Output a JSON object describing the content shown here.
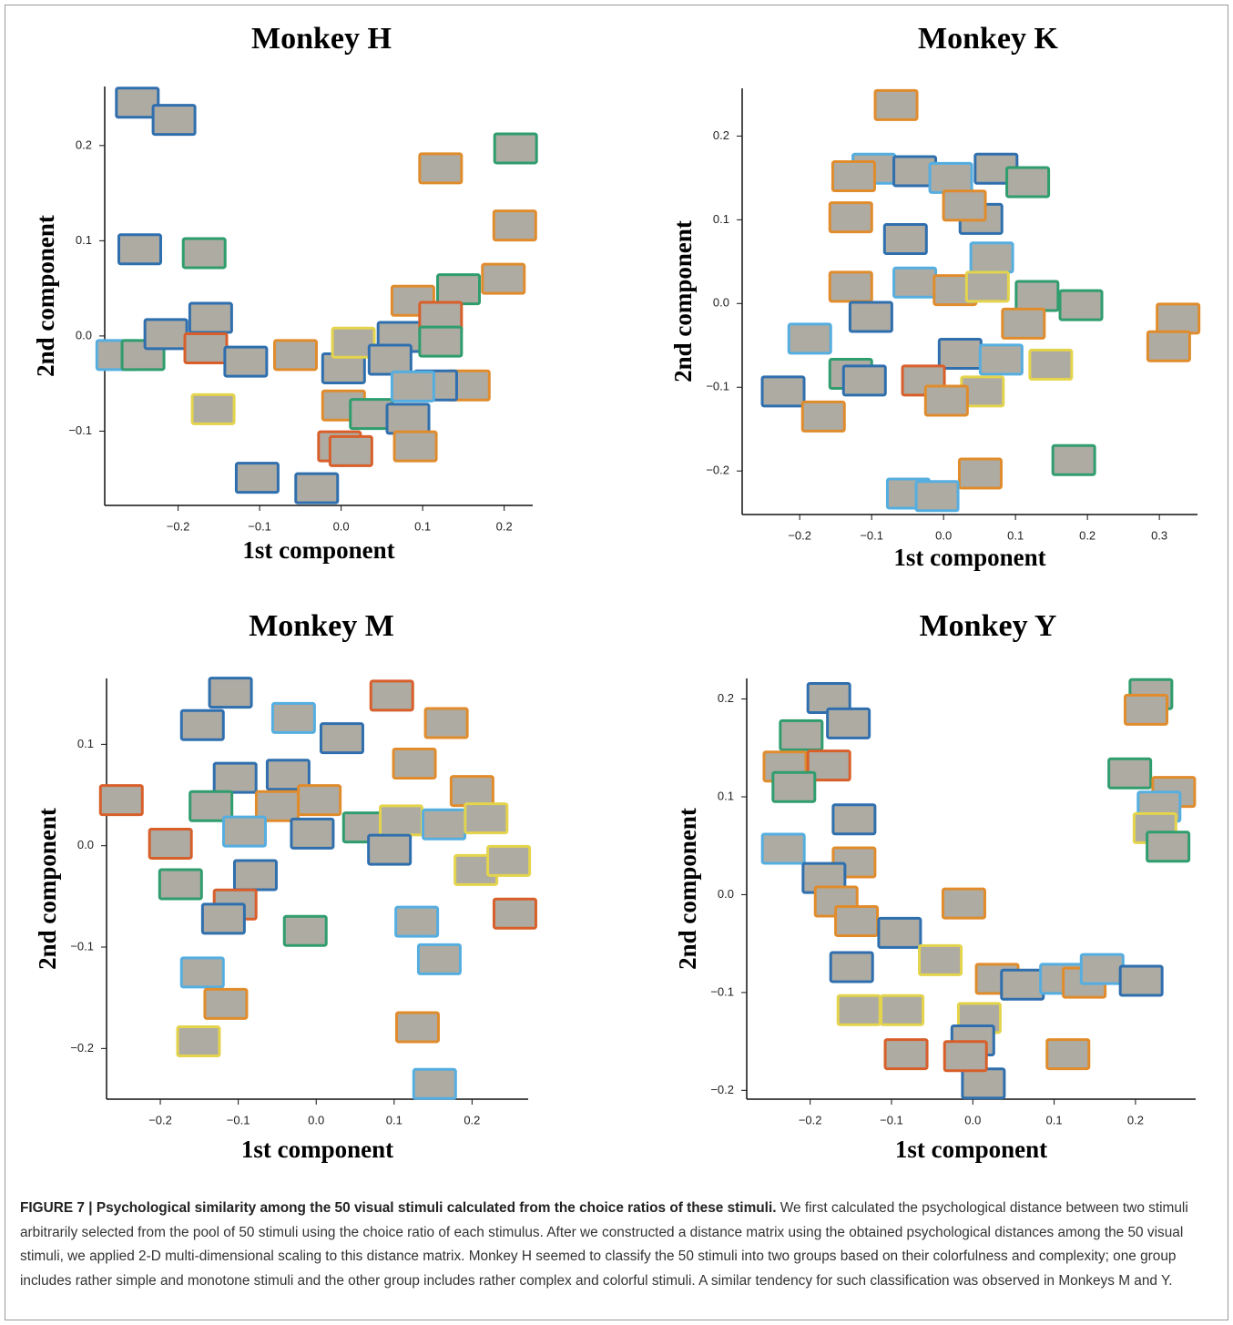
{
  "chart_data": [
    {
      "type": "scatter",
      "title": "Monkey H",
      "xlabel": "1st component",
      "ylabel": "2nd component",
      "xlim": [
        -0.29,
        0.235
      ],
      "ylim": [
        -0.178,
        0.262
      ],
      "xticks": [
        {
          "value": -0.2,
          "label": "−0.2"
        },
        {
          "value": -0.1,
          "label": "−0.1"
        },
        {
          "value": 0,
          "label": "0.0"
        },
        0.1,
        0.2
      ],
      "yticks": [
        {
          "value": -0.1,
          "label": "−0.1"
        },
        {
          "value": 0,
          "label": "0.0"
        },
        0.1,
        0.2
      ],
      "x": [
        -0.25,
        -0.205,
        -0.247,
        -0.168,
        -0.274,
        -0.243,
        -0.215,
        -0.16,
        -0.166,
        -0.117,
        -0.157,
        -0.103,
        -0.03,
        -0.056,
        0.003,
        0.015,
        0.003,
        -0.002,
        0.037,
        0.071,
        0.06,
        0.088,
        0.144,
        0.199,
        0.122,
        0.122,
        0.156,
        0.116,
        0.082,
        0.091,
        0.122,
        0.214,
        0.213,
        0.012,
        0.088
      ],
      "values": [
        0.245,
        0.227,
        0.091,
        0.087,
        -0.02,
        -0.02,
        0.002,
        0.019,
        -0.013,
        -0.027,
        -0.077,
        -0.149,
        -0.16,
        -0.02,
        -0.034,
        -0.007,
        -0.073,
        -0.116,
        -0.082,
        -0.001,
        -0.025,
        0.037,
        0.049,
        0.06,
        0.02,
        -0.006,
        -0.052,
        -0.052,
        -0.087,
        -0.116,
        0.176,
        0.197,
        0.116,
        -0.121,
        -0.053
      ],
      "colors": [
        "#2f6fae",
        "#2f6fae",
        "#2f6fae",
        "#2f9d6e",
        "#55aee0",
        "#2f9d6e",
        "#2f6fae",
        "#2f6fae",
        "#d85f2a",
        "#2f6fae",
        "#e4d44c",
        "#2f6fae",
        "#2f6fae",
        "#e08c2c",
        "#2f6fae",
        "#e4d44c",
        "#e08c2c",
        "#d85f2a",
        "#2f9d6e",
        "#2f6fae",
        "#2f6fae",
        "#e08c2c",
        "#2f9d6e",
        "#e08c2c",
        "#d85f2a",
        "#2f9d6e",
        "#e08c2c",
        "#2f6fae",
        "#2f6fae",
        "#e08c2c",
        "#e08c2c",
        "#2f9d6e",
        "#e08c2c",
        "#d85f2a",
        "#55aee0"
      ]
    },
    {
      "type": "scatter",
      "title": "Monkey K",
      "xlabel": "1st component",
      "ylabel": "2nd component",
      "xlim": [
        -0.28,
        0.353
      ],
      "ylim": [
        -0.252,
        0.257
      ],
      "xticks": [
        {
          "value": -0.2,
          "label": "−0.2"
        },
        {
          "value": -0.1,
          "label": "−0.1"
        },
        {
          "value": 0,
          "label": "0.0"
        },
        0.1,
        0.2,
        0.3
      ],
      "yticks": [
        {
          "value": -0.2,
          "label": "−0.2"
        },
        {
          "value": -0.1,
          "label": "−0.1"
        },
        {
          "value": 0,
          "label": "0.0"
        },
        0.1,
        0.2
      ],
      "x": [
        -0.066,
        -0.097,
        -0.125,
        -0.04,
        0.01,
        0.073,
        0.117,
        -0.129,
        -0.053,
        0.052,
        0.029,
        0.067,
        -0.129,
        -0.04,
        0.016,
        0.061,
        0.13,
        0.191,
        -0.101,
        -0.186,
        0.111,
        0.326,
        0.313,
        0.023,
        0.08,
        0.149,
        -0.129,
        -0.11,
        -0.028,
        0.054,
        0.004,
        -0.223,
        -0.167,
        0.051,
        0.181,
        -0.049,
        -0.009
      ],
      "values": [
        0.237,
        0.161,
        0.152,
        0.158,
        0.15,
        0.161,
        0.145,
        0.103,
        0.077,
        0.101,
        0.117,
        0.055,
        0.02,
        0.025,
        0.016,
        0.02,
        0.009,
        -0.002,
        -0.016,
        -0.042,
        -0.024,
        -0.018,
        -0.051,
        -0.06,
        -0.067,
        -0.073,
        -0.084,
        -0.092,
        -0.092,
        -0.105,
        -0.116,
        -0.105,
        -0.135,
        -0.203,
        -0.187,
        -0.227,
        -0.23
      ],
      "colors": [
        "#e08c2c",
        "#55aee0",
        "#e08c2c",
        "#2f6fae",
        "#55aee0",
        "#2f6fae",
        "#2f9d6e",
        "#e08c2c",
        "#2f6fae",
        "#2f6fae",
        "#e08c2c",
        "#55aee0",
        "#e08c2c",
        "#55aee0",
        "#e08c2c",
        "#e4d44c",
        "#2f9d6e",
        "#2f9d6e",
        "#2f6fae",
        "#55aee0",
        "#e08c2c",
        "#e08c2c",
        "#e08c2c",
        "#2f6fae",
        "#55aee0",
        "#e4d44c",
        "#2f9d6e",
        "#2f6fae",
        "#d85f2a",
        "#e4d44c",
        "#e08c2c",
        "#2f6fae",
        "#e08c2c",
        "#e08c2c",
        "#2f9d6e",
        "#55aee0",
        "#55aee0"
      ]
    },
    {
      "type": "scatter",
      "title": "Monkey M",
      "xlabel": "1st component",
      "ylabel": "2nd component",
      "xlim": [
        -0.269,
        0.272
      ],
      "ylim": [
        -0.25,
        0.165
      ],
      "xticks": [
        {
          "value": -0.2,
          "label": "−0.2"
        },
        {
          "value": -0.1,
          "label": "−0.1"
        },
        {
          "value": 0,
          "label": "0.0"
        },
        0.1,
        0.2
      ],
      "yticks": [
        {
          "value": -0.2,
          "label": "−0.2"
        },
        {
          "value": -0.1,
          "label": "−0.1"
        },
        {
          "value": 0,
          "label": "0.0"
        },
        0.1
      ],
      "x": [
        -0.25,
        -0.187,
        -0.174,
        -0.11,
        -0.146,
        -0.029,
        0.033,
        0.097,
        0.167,
        0.126,
        -0.104,
        -0.036,
        0.004,
        -0.135,
        -0.05,
        -0.092,
        -0.005,
        0.062,
        0.109,
        0.164,
        0.2,
        0.218,
        0.094,
        0.205,
        0.247,
        0.255,
        -0.078,
        -0.104,
        -0.119,
        -0.014,
        0.129,
        0.158,
        -0.146,
        -0.116,
        -0.151,
        0.13,
        0.152
      ],
      "values": [
        0.045,
        0.002,
        -0.038,
        0.151,
        0.119,
        0.126,
        0.106,
        0.148,
        0.121,
        0.081,
        0.067,
        0.07,
        0.045,
        0.039,
        0.039,
        0.014,
        0.012,
        0.018,
        0.025,
        0.021,
        0.054,
        0.027,
        -0.004,
        -0.024,
        -0.015,
        -0.067,
        -0.029,
        -0.058,
        -0.072,
        -0.084,
        -0.075,
        -0.112,
        -0.125,
        -0.156,
        -0.193,
        -0.179,
        -0.235
      ],
      "colors": [
        "#d85f2a",
        "#d85f2a",
        "#2f9d6e",
        "#2f6fae",
        "#2f6fae",
        "#55aee0",
        "#2f6fae",
        "#d85f2a",
        "#e08c2c",
        "#e08c2c",
        "#2f6fae",
        "#2f6fae",
        "#e08c2c",
        "#2f9d6e",
        "#e08c2c",
        "#55aee0",
        "#2f6fae",
        "#2f9d6e",
        "#e4d44c",
        "#55aee0",
        "#e08c2c",
        "#e4d44c",
        "#2f6fae",
        "#e4d44c",
        "#e4d44c",
        "#d85f2a",
        "#2f6fae",
        "#d85f2a",
        "#2f6fae",
        "#2f9d6e",
        "#55aee0",
        "#55aee0",
        "#55aee0",
        "#e08c2c",
        "#e4d44c",
        "#e08c2c",
        "#55aee0"
      ]
    },
    {
      "type": "scatter",
      "title": "Monkey Y",
      "xlabel": "1st component",
      "ylabel": "2nd component",
      "xlim": [
        -0.278,
        0.274
      ],
      "ylim": [
        -0.209,
        0.221
      ],
      "xticks": [
        {
          "value": -0.2,
          "label": "−0.2"
        },
        {
          "value": -0.1,
          "label": "−0.1"
        },
        {
          "value": 0,
          "label": "0.0"
        },
        0.1,
        0.2
      ],
      "yticks": [
        {
          "value": -0.2,
          "label": "−0.2"
        },
        {
          "value": -0.1,
          "label": "−0.1"
        },
        {
          "value": 0,
          "label": "0.0"
        },
        0.1,
        0.2
      ],
      "x": [
        -0.177,
        -0.153,
        -0.211,
        -0.231,
        -0.177,
        -0.22,
        -0.146,
        -0.233,
        -0.146,
        -0.183,
        -0.168,
        -0.143,
        -0.09,
        -0.149,
        -0.04,
        -0.011,
        -0.14,
        -0.087,
        -0.082,
        0.008,
        0,
        0.013,
        -0.009,
        0.03,
        0.061,
        0.109,
        0.137,
        0.159,
        0.207,
        0.117,
        0.219,
        0.213,
        0.193,
        0.247,
        0.229,
        0.224,
        0.24
      ],
      "values": [
        0.201,
        0.175,
        0.163,
        0.131,
        0.132,
        0.11,
        0.077,
        0.047,
        0.033,
        0.017,
        -0.007,
        -0.027,
        -0.039,
        -0.074,
        -0.067,
        -0.009,
        -0.118,
        -0.118,
        -0.163,
        -0.126,
        -0.149,
        -0.193,
        -0.165,
        -0.086,
        -0.092,
        -0.086,
        -0.09,
        -0.076,
        -0.088,
        -0.163,
        0.205,
        0.189,
        0.124,
        0.105,
        0.09,
        0.068,
        0.049
      ],
      "colors": [
        "#2f6fae",
        "#2f6fae",
        "#2f9d6e",
        "#e08c2c",
        "#d85f2a",
        "#2f9d6e",
        "#2f6fae",
        "#55aee0",
        "#e08c2c",
        "#2f6fae",
        "#e08c2c",
        "#e08c2c",
        "#2f6fae",
        "#2f6fae",
        "#e4d44c",
        "#e08c2c",
        "#e4d44c",
        "#e4d44c",
        "#d85f2a",
        "#e4d44c",
        "#2f6fae",
        "#2f6fae",
        "#d85f2a",
        "#e08c2c",
        "#2f6fae",
        "#55aee0",
        "#e08c2c",
        "#55aee0",
        "#2f6fae",
        "#e08c2c",
        "#2f9d6e",
        "#e08c2c",
        "#2f9d6e",
        "#e08c2c",
        "#55aee0",
        "#e4d44c",
        "#2f9d6e"
      ]
    }
  ],
  "caption": {
    "label": "FIGURE 7 | Psychological similarity among the 50 visual stimuli calculated from the choice ratios of these stimuli.",
    "text": "We first calculated the psychological distance between two stimuli arbitrarily selected from the pool of 50 stimuli using the choice ratio of each stimulus. After we constructed a distance matrix using the obtained psychological distances among the 50 visual stimuli, we applied 2-D multi-dimensional scaling to this distance matrix. Monkey H seemed to classify the 50 stimuli into two groups based on their colorfulness and complexity; one group includes rather simple and monotone stimuli and the other group includes rather complex and colorful stimuli. A similar tendency for such classification was observed in Monkeys M and Y."
  }
}
